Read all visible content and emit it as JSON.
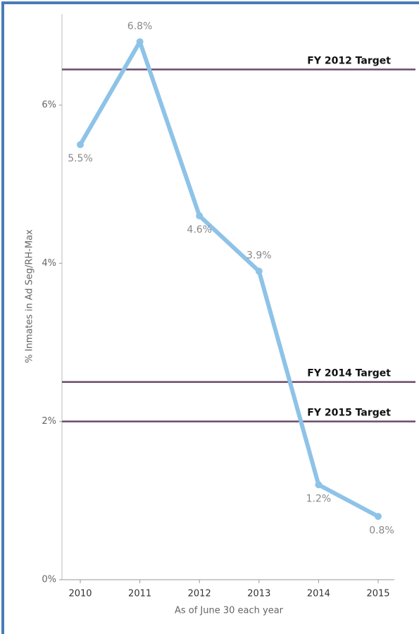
{
  "chart_data": {
    "type": "line",
    "categories": [
      "2010",
      "2011",
      "2012",
      "2013",
      "2014",
      "2015"
    ],
    "values": [
      5.5,
      6.8,
      4.6,
      3.9,
      1.2,
      0.8
    ],
    "value_labels": [
      "5.5%",
      "6.8%",
      "4.6%",
      "3.9%",
      "1.2%",
      "0.8%"
    ],
    "color": "#8ec3e8",
    "ylabel": "% Inmates in Ad Seg/RH-Max",
    "xlabel": "As of June 30 each year",
    "ylim": [
      0,
      7.15
    ],
    "yticks": [
      {
        "value": 0,
        "label": "0%"
      },
      {
        "value": 2,
        "label": "2%"
      },
      {
        "value": 4,
        "label": "4%"
      },
      {
        "value": 6,
        "label": "6%"
      }
    ],
    "reference_lines": [
      {
        "label": "FY 2012 Target",
        "value": 6.45
      },
      {
        "label": "FY 2014 Target",
        "value": 2.5
      },
      {
        "label": "FY 2015 Target",
        "value": 2.0
      }
    ],
    "reference_color": "#6b4a6a"
  }
}
